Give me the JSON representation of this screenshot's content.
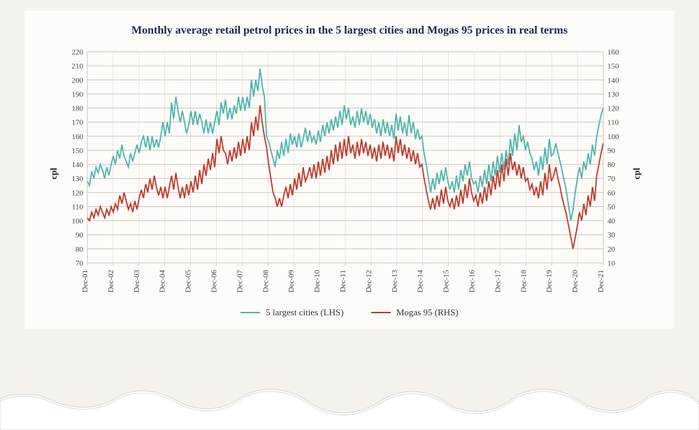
{
  "chart": {
    "type": "line-dual-axis",
    "title": "Monthly average retail petrol prices in the 5 largest cities and Mogas 95 prices in real terms",
    "title_color": "#1a2850",
    "title_fontsize": 15,
    "background_color": "#fefcf9",
    "page_background": "#f5f2ed",
    "grid_color": "#c9c5bf",
    "x_labels": [
      "Dec-01",
      "Dec-02",
      "Dec-03",
      "Dec-04",
      "Dec-05",
      "Dec-06",
      "Dec-07",
      "Dec-08",
      "Dec-09",
      "Dec-10",
      "Dec-11",
      "Dec-12",
      "Dec-13",
      "Dec-14",
      "Dec-15",
      "Dec-16",
      "Dec-17",
      "Dec-18",
      "Dec-19",
      "Dec-20",
      "Dec-21"
    ],
    "y_left": {
      "label": "cpl",
      "min": 70,
      "max": 220,
      "step": 10,
      "label_fontsize": 13
    },
    "y_right": {
      "label": "cpl",
      "min": 10,
      "max": 160,
      "step": 10,
      "label_fontsize": 13
    },
    "series": [
      {
        "name": "5 largest cities (LHS)",
        "axis": "left",
        "color": "#4db5ac",
        "line_width": 1.8,
        "values": [
          128,
          125,
          135,
          130,
          138,
          134,
          140,
          136,
          130,
          138,
          132,
          140,
          146,
          140,
          150,
          144,
          154,
          146,
          142,
          138,
          148,
          142,
          148,
          154,
          148,
          156,
          160,
          152,
          160,
          150,
          160,
          152,
          158,
          152,
          160,
          170,
          160,
          170,
          162,
          184,
          172,
          188,
          178,
          170,
          178,
          170,
          162,
          168,
          178,
          168,
          178,
          168,
          176,
          170,
          162,
          172,
          162,
          170,
          162,
          170,
          178,
          168,
          184,
          176,
          186,
          172,
          180,
          172,
          182,
          176,
          188,
          178,
          188,
          178,
          188,
          180,
          200,
          188,
          200,
          192,
          208,
          196,
          188,
          160,
          156,
          150,
          144,
          138,
          150,
          144,
          156,
          146,
          158,
          148,
          162,
          154,
          160,
          152,
          162,
          152,
          158,
          166,
          156,
          164,
          156,
          160,
          154,
          164,
          156,
          168,
          160,
          170,
          162,
          172,
          164,
          174,
          166,
          178,
          168,
          182,
          172,
          180,
          168,
          174,
          166,
          178,
          168,
          180,
          170,
          178,
          168,
          176,
          166,
          172,
          162,
          170,
          160,
          172,
          162,
          170,
          160,
          168,
          158,
          176,
          164,
          174,
          162,
          170,
          160,
          175,
          162,
          170,
          158,
          165,
          158,
          160,
          148,
          140,
          130,
          120,
          130,
          122,
          134,
          126,
          136,
          128,
          138,
          128,
          122,
          128,
          120,
          132,
          122,
          136,
          128,
          140,
          132,
          142,
          130,
          126,
          128,
          120,
          132,
          124,
          136,
          126,
          140,
          128,
          142,
          132,
          146,
          134,
          148,
          136,
          150,
          140,
          158,
          146,
          162,
          150,
          168,
          156,
          160,
          150,
          156,
          148,
          144,
          136,
          142,
          132,
          146,
          136,
          152,
          140,
          158,
          146,
          148,
          155,
          148,
          142,
          135,
          128,
          120,
          110,
          100,
          108,
          120,
          130,
          138,
          130,
          142,
          136,
          148,
          140,
          154,
          146,
          160,
          168,
          175,
          180
        ]
      },
      {
        "name": "Mogas 95 (RHS)",
        "axis": "right",
        "color": "#c0392b",
        "line_width": 1.8,
        "values": [
          42,
          40,
          46,
          42,
          48,
          44,
          50,
          46,
          42,
          48,
          44,
          50,
          46,
          52,
          48,
          58,
          52,
          60,
          54,
          48,
          52,
          46,
          54,
          48,
          56,
          62,
          56,
          66,
          60,
          70,
          62,
          72,
          64,
          58,
          64,
          56,
          64,
          56,
          64,
          72,
          62,
          74,
          64,
          56,
          64,
          56,
          66,
          58,
          68,
          60,
          72,
          62,
          76,
          66,
          80,
          72,
          84,
          76,
          88,
          78,
          98,
          88,
          100,
          90,
          88,
          80,
          90,
          82,
          92,
          84,
          96,
          86,
          98,
          88,
          100,
          90,
          110,
          100,
          114,
          104,
          122,
          110,
          100,
          92,
          80,
          70,
          60,
          56,
          50,
          56,
          50,
          58,
          64,
          56,
          66,
          58,
          70,
          62,
          74,
          64,
          78,
          68,
          72,
          78,
          70,
          80,
          70,
          82,
          72,
          84,
          74,
          86,
          76,
          90,
          80,
          94,
          82,
          96,
          84,
          98,
          86,
          100,
          88,
          94,
          84,
          96,
          86,
          98,
          88,
          96,
          86,
          94,
          84,
          92,
          82,
          94,
          84,
          96,
          86,
          94,
          84,
          92,
          82,
          100,
          88,
          98,
          86,
          94,
          84,
          92,
          82,
          90,
          80,
          88,
          78,
          80,
          70,
          62,
          54,
          48,
          56,
          48,
          58,
          50,
          62,
          52,
          64,
          54,
          50,
          56,
          48,
          58,
          50,
          62,
          52,
          66,
          56,
          70,
          60,
          54,
          58,
          50,
          60,
          52,
          64,
          54,
          68,
          58,
          72,
          62,
          76,
          64,
          80,
          68,
          84,
          72,
          88,
          76,
          82,
          72,
          80,
          70,
          78,
          68,
          70,
          62,
          66,
          58,
          64,
          56,
          68,
          58,
          74,
          62,
          80,
          68,
          72,
          78,
          70,
          64,
          56,
          50,
          44,
          36,
          28,
          20,
          28,
          36,
          46,
          40,
          52,
          44,
          58,
          50,
          64,
          54,
          72,
          80,
          88,
          95
        ]
      }
    ],
    "legend": {
      "position": "bottom-center",
      "fontsize": 13
    }
  }
}
